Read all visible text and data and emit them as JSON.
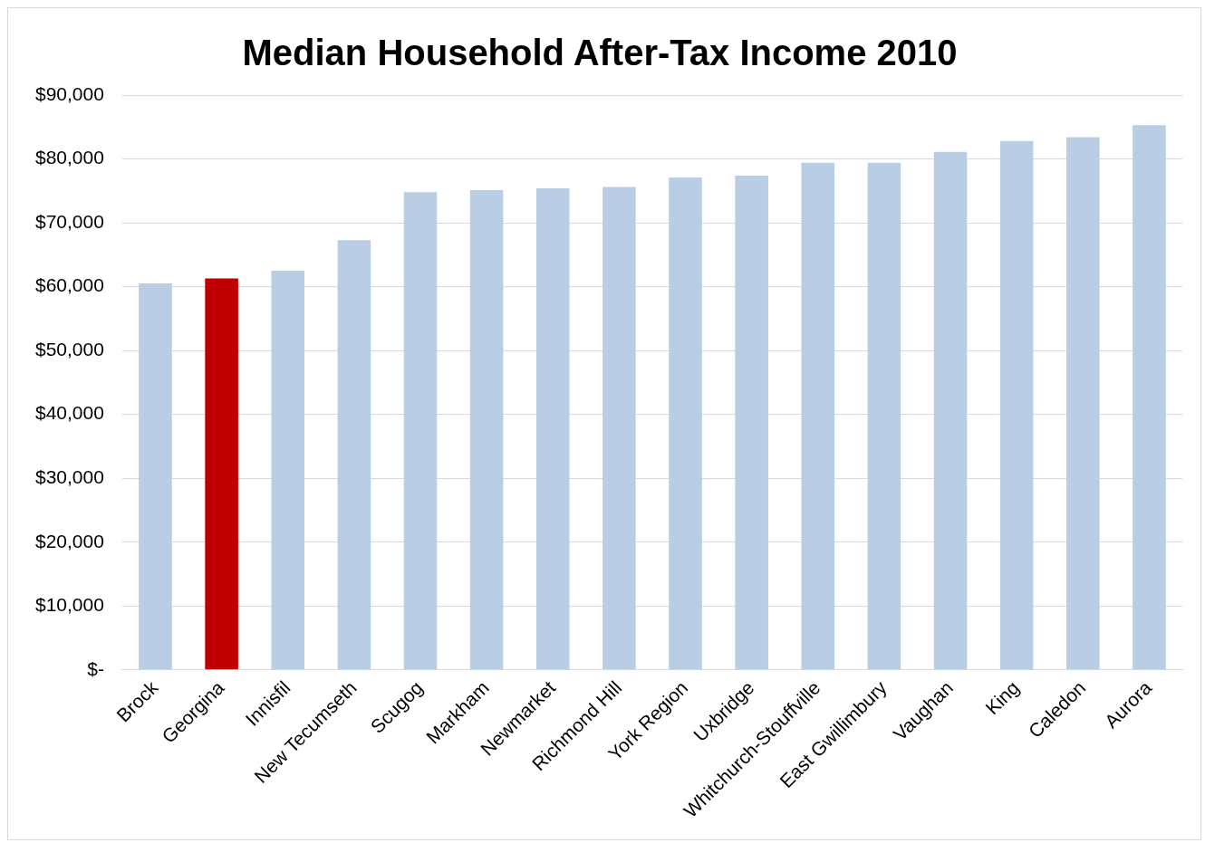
{
  "chart_data": {
    "type": "bar",
    "title": "Median Household After-Tax Income 2010",
    "categories": [
      "Brock",
      "Georgina",
      "Innisfil",
      "New Tecumseth",
      "Scugog",
      "Markham",
      "Newmarket",
      "Richmond Hill",
      "York Region",
      "Uxbridge",
      "Whitchurch-Stouffville",
      "East Gwillimbury",
      "Vaughan",
      "King",
      "Caledon",
      "Aurora"
    ],
    "values": [
      60500,
      61300,
      62500,
      67300,
      74800,
      75100,
      75400,
      75600,
      77100,
      77400,
      79400,
      79400,
      81100,
      82800,
      83400,
      85300
    ],
    "colors": [
      "#b9cde5",
      "#c00000",
      "#b9cde5",
      "#b9cde5",
      "#b9cde5",
      "#b9cde5",
      "#b9cde5",
      "#b9cde5",
      "#b9cde5",
      "#b9cde5",
      "#b9cde5",
      "#b9cde5",
      "#b9cde5",
      "#b9cde5",
      "#b9cde5",
      "#b9cde5"
    ],
    "ylim": [
      0,
      90000
    ],
    "yticks": [
      {
        "value": 0,
        "label": "$-"
      },
      {
        "value": 10000,
        "label": "$10,000"
      },
      {
        "value": 20000,
        "label": "$20,000"
      },
      {
        "value": 30000,
        "label": "$30,000"
      },
      {
        "value": 40000,
        "label": "$40,000"
      },
      {
        "value": 50000,
        "label": "$50,000"
      },
      {
        "value": 60000,
        "label": "$60,000"
      },
      {
        "value": 70000,
        "label": "$70,000"
      },
      {
        "value": 80000,
        "label": "$80,000"
      },
      {
        "value": 90000,
        "label": "$90,000"
      }
    ],
    "grid": "y",
    "legend": false
  }
}
